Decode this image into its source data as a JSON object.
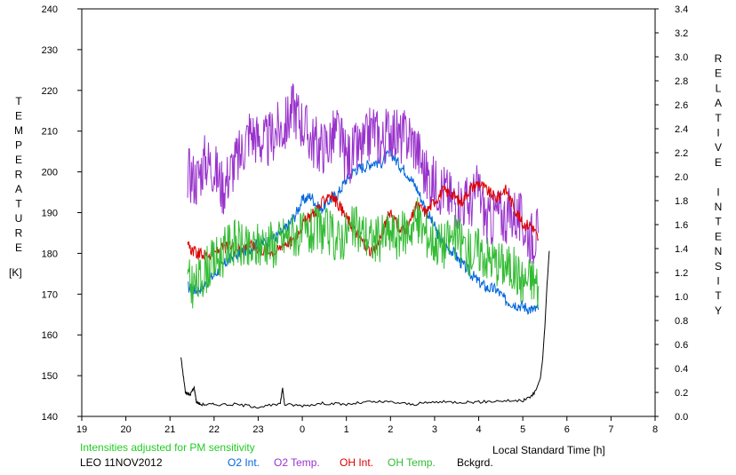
{
  "chart_data": {
    "type": "line",
    "xlabel": "Local Standard Time [h]",
    "ylabel_left": "TEMPERATURE",
    "ylabel_left_unit": "[K]",
    "ylabel_right": "RELATIVE INTENSITY",
    "note": "Intensities adjusted for PM sensitivity",
    "site_date": "LEO 11NOV2012",
    "x_ticks": [
      "19",
      "20",
      "21",
      "22",
      "23",
      "0",
      "1",
      "2",
      "3",
      "4",
      "5",
      "6",
      "7",
      "8"
    ],
    "y_left_ticks": [
      140,
      150,
      160,
      170,
      180,
      190,
      200,
      210,
      220,
      230,
      240
    ],
    "y_right_ticks": [
      "0.0",
      "0.2",
      "0.4",
      "0.6",
      "0.8",
      "1.0",
      "1.2",
      "1.4",
      "1.6",
      "1.8",
      "2.0",
      "2.2",
      "2.4",
      "2.6",
      "2.8",
      "3.0",
      "3.2",
      "3.4"
    ],
    "xlim": [
      19,
      32
    ],
    "ylim_left": [
      140,
      240
    ],
    "ylim_right": [
      0,
      3.4
    ],
    "grid": false,
    "series": [
      {
        "name": "O2 Int.",
        "axis": "right",
        "color": "#0066dd",
        "x": [
          21.4,
          21.6,
          21.8,
          22.0,
          22.2,
          22.4,
          22.6,
          22.8,
          23.0,
          23.2,
          23.4,
          23.6,
          23.8,
          24.0,
          24.2,
          24.4,
          24.6,
          24.8,
          25.0,
          25.2,
          25.4,
          25.6,
          25.8,
          26.0,
          26.2,
          26.4,
          26.6,
          26.8,
          27.0,
          27.2,
          27.4,
          27.6,
          27.8,
          28.0,
          28.2,
          28.4,
          28.6,
          28.8,
          29.0,
          29.2,
          29.35
        ],
        "y": [
          1.08,
          1.05,
          1.1,
          1.18,
          1.26,
          1.33,
          1.37,
          1.4,
          1.44,
          1.46,
          1.5,
          1.56,
          1.65,
          1.8,
          1.84,
          1.72,
          1.8,
          1.85,
          1.98,
          2.06,
          2.08,
          2.12,
          2.12,
          2.2,
          2.1,
          2.02,
          1.9,
          1.73,
          1.58,
          1.43,
          1.38,
          1.28,
          1.2,
          1.12,
          1.07,
          1.06,
          0.97,
          0.94,
          0.92,
          0.89,
          0.89
        ]
      },
      {
        "name": "O2 Temp.",
        "axis": "left",
        "color": "#9933cc",
        "x": [
          21.4,
          21.6,
          21.8,
          22.0,
          22.2,
          22.4,
          22.6,
          22.8,
          23.0,
          23.2,
          23.4,
          23.6,
          23.8,
          24.0,
          24.2,
          24.4,
          24.6,
          24.8,
          25.0,
          25.2,
          25.4,
          25.6,
          25.8,
          26.0,
          26.2,
          26.4,
          26.6,
          26.8,
          27.0,
          27.2,
          27.4,
          27.6,
          27.8,
          28.0,
          28.2,
          28.4,
          28.6,
          28.8,
          29.0,
          29.2,
          29.35
        ],
        "y": [
          200,
          198,
          203,
          201,
          196,
          201,
          204,
          210,
          208,
          207,
          210,
          211,
          216,
          212,
          208,
          206,
          207,
          210,
          203,
          205,
          206,
          211,
          207,
          211,
          208,
          209,
          206,
          199,
          197,
          196,
          193,
          193,
          192,
          196,
          187,
          190,
          189,
          190,
          187,
          184,
          185
        ]
      },
      {
        "name": "OH Int.",
        "axis": "right",
        "color": "#dd0000",
        "x": [
          21.4,
          21.6,
          21.8,
          22.0,
          22.2,
          22.4,
          22.6,
          22.8,
          23.0,
          23.2,
          23.4,
          23.6,
          23.8,
          24.0,
          24.2,
          24.4,
          24.6,
          24.8,
          25.0,
          25.2,
          25.4,
          25.6,
          25.8,
          26.0,
          26.2,
          26.4,
          26.6,
          26.8,
          27.0,
          27.2,
          27.4,
          27.6,
          27.8,
          28.0,
          28.2,
          28.4,
          28.6,
          28.8,
          29.0,
          29.2,
          29.35
        ],
        "y": [
          1.42,
          1.36,
          1.35,
          1.36,
          1.4,
          1.42,
          1.4,
          1.43,
          1.4,
          1.38,
          1.37,
          1.45,
          1.46,
          1.6,
          1.68,
          1.75,
          1.86,
          1.78,
          1.66,
          1.55,
          1.44,
          1.35,
          1.52,
          1.72,
          1.55,
          1.58,
          1.76,
          1.7,
          1.8,
          1.88,
          1.86,
          1.78,
          1.9,
          1.95,
          1.88,
          1.82,
          1.9,
          1.75,
          1.6,
          1.6,
          1.48
        ]
      },
      {
        "name": "OH Temp.",
        "axis": "left",
        "color": "#33bb33",
        "x": [
          21.4,
          21.6,
          21.8,
          22.0,
          22.2,
          22.4,
          22.6,
          22.8,
          23.0,
          23.2,
          23.4,
          23.6,
          23.8,
          24.0,
          24.2,
          24.4,
          24.6,
          24.8,
          25.0,
          25.2,
          25.4,
          25.6,
          25.8,
          26.0,
          26.2,
          26.4,
          26.6,
          26.8,
          27.0,
          27.2,
          27.4,
          27.6,
          27.8,
          28.0,
          28.2,
          28.4,
          28.6,
          28.8,
          29.0,
          29.2,
          29.35
        ],
        "y": [
          173,
          172,
          176,
          178,
          180,
          183,
          182,
          180,
          182,
          183,
          182,
          184,
          185,
          184,
          185,
          186,
          185,
          183,
          185,
          186,
          185,
          183,
          184,
          185,
          184,
          186,
          188,
          185,
          183,
          182,
          184,
          183,
          180,
          181,
          179,
          178,
          177,
          176,
          173,
          174,
          172
        ]
      },
      {
        "name": "Bckgrd.",
        "axis": "right",
        "color": "#000000",
        "x": [
          21.25,
          21.35,
          21.45,
          21.55,
          21.6,
          21.7,
          22.0,
          22.5,
          23.0,
          23.5,
          23.55,
          23.6,
          24.0,
          24.5,
          25.0,
          25.5,
          26.0,
          26.5,
          27.0,
          27.5,
          28.0,
          28.5,
          29.0,
          29.2,
          29.3,
          29.4,
          29.45,
          29.5,
          29.55,
          29.6
        ],
        "y": [
          0.49,
          0.2,
          0.18,
          0.24,
          0.12,
          0.1,
          0.1,
          0.1,
          0.08,
          0.1,
          0.24,
          0.1,
          0.09,
          0.11,
          0.1,
          0.12,
          0.12,
          0.1,
          0.12,
          0.12,
          0.12,
          0.13,
          0.13,
          0.17,
          0.22,
          0.32,
          0.48,
          0.75,
          1.1,
          1.38
        ]
      }
    ]
  }
}
